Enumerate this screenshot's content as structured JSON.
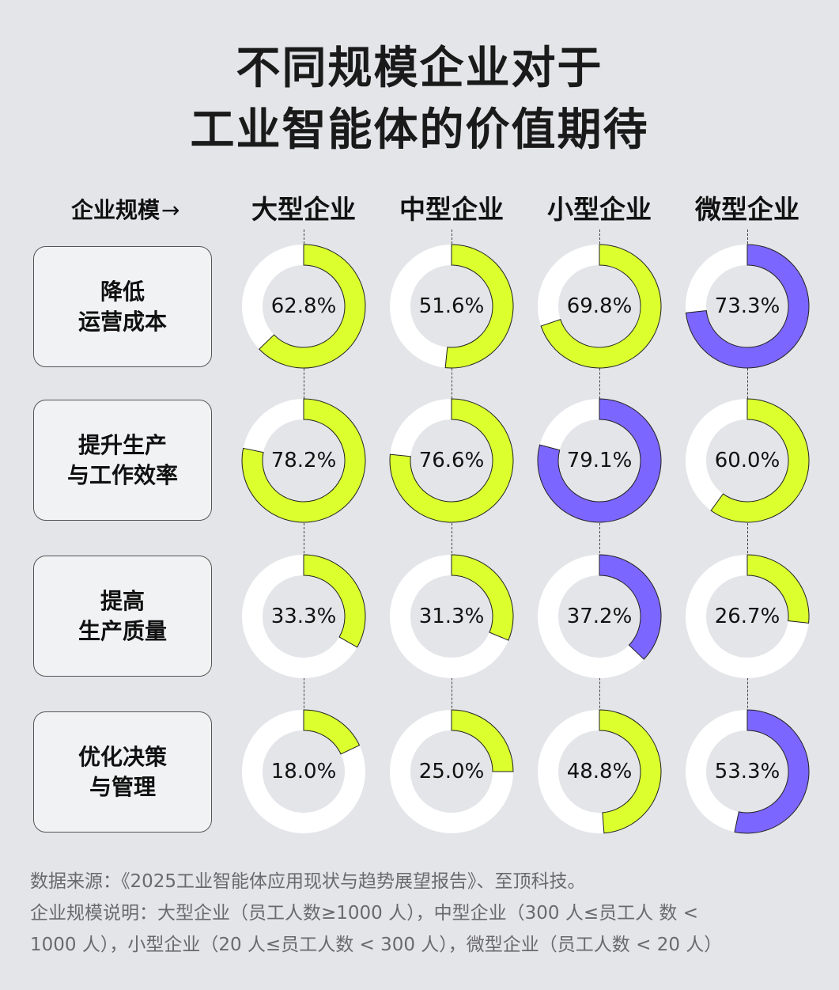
{
  "title": {
    "line1": "不同规模企业对于",
    "line2": "工业智能体的价值期待"
  },
  "axis_label": "企业规模",
  "axis_arrow": "→",
  "columns": [
    "大型企业",
    "中型企业",
    "小型企业",
    "微型企业"
  ],
  "rows": [
    {
      "label_line1": "降低",
      "label_line2": "运营成本"
    },
    {
      "label_line1": "提升生产",
      "label_line2": "与工作效率"
    },
    {
      "label_line1": "提高",
      "label_line2": "生产质量"
    },
    {
      "label_line1": "优化决策",
      "label_line2": "与管理"
    }
  ],
  "colors": {
    "background": "#e4e5e9",
    "highlight_green": "#dcff2e",
    "highlight_purple": "#7b66ff",
    "track": "#ffffff"
  },
  "chart_data": {
    "type": "donut-grid",
    "title": "不同规模企业对于工业智能体的价值期待",
    "xlabel": "企业规模",
    "categories": [
      "大型企业",
      "中型企业",
      "小型企业",
      "微型企业"
    ],
    "series": [
      {
        "name": "降低运营成本",
        "values": [
          62.8,
          51.6,
          69.8,
          73.3
        ],
        "highlight": [
          false,
          false,
          false,
          true
        ]
      },
      {
        "name": "提升生产与工作效率",
        "values": [
          78.2,
          76.6,
          79.1,
          60.0
        ],
        "highlight": [
          false,
          false,
          true,
          false
        ]
      },
      {
        "name": "提高生产质量",
        "values": [
          33.3,
          31.3,
          37.2,
          26.7
        ],
        "highlight": [
          false,
          false,
          true,
          false
        ]
      },
      {
        "name": "优化决策与管理",
        "values": [
          18.0,
          25.0,
          48.8,
          53.3
        ],
        "highlight": [
          false,
          false,
          false,
          true
        ]
      }
    ],
    "labels": [
      [
        "62.8%",
        "51.6%",
        "69.8%",
        "73.3%"
      ],
      [
        "78.2%",
        "76.6%",
        "79.1%",
        "60.0%"
      ],
      [
        "33.3%",
        "31.3%",
        "37.2%",
        "26.7%"
      ],
      [
        "18.0%",
        "25.0%",
        "48.8%",
        "53.3%"
      ]
    ],
    "unit": "%",
    "range": [
      0,
      100
    ],
    "highlight_note": "purple = highest value in row"
  },
  "footer": {
    "source": "数据来源：《2025工业智能体应用现状与趋势展望报告》、至顶科技。",
    "note_line1": "企业规模说明：大型企业（员工人数≥1000 人），中型企业（300 人≤员工人 数 <",
    "note_line2": "1000 人），小型企业（20 人≤员工人数 < 300 人），微型企业（员工人数 < 20 人）"
  }
}
